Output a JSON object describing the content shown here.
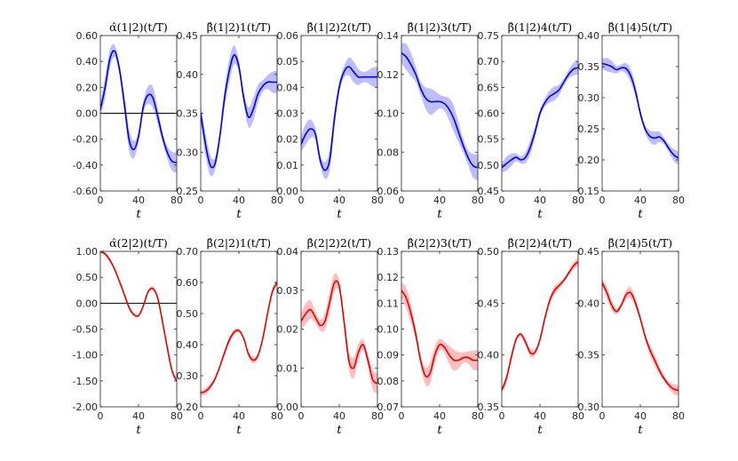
{
  "chart_data": [
    {
      "type": "line",
      "title": "α̂(1|2)(t/T)",
      "xlabel": "t",
      "ylabel": "",
      "xlim": [
        0,
        80
      ],
      "ylim": [
        -0.6,
        0.6
      ],
      "xticks": [
        0,
        40,
        80
      ],
      "xtick_labels": [
        "0",
        "40",
        "80"
      ],
      "yticks": [
        -0.6,
        -0.4,
        -0.2,
        0,
        0.2,
        0.4,
        0.6
      ],
      "ytick_labels": [
        "-0.60",
        "-0.40",
        "-0.20",
        "0.00",
        "0.20",
        "0.40",
        "0.60"
      ],
      "color": "#0000e6",
      "band_color": "#b3b3ff",
      "zero_line": true,
      "band_half_width": 0.06,
      "x": [
        0,
        5,
        10,
        15,
        20,
        25,
        30,
        35,
        40,
        45,
        50,
        55,
        60,
        65,
        70,
        75,
        80
      ],
      "values": [
        0.03,
        0.2,
        0.42,
        0.48,
        0.34,
        0.08,
        -0.2,
        -0.28,
        -0.18,
        0.05,
        0.14,
        0.12,
        -0.02,
        -0.18,
        -0.3,
        -0.37,
        -0.38
      ]
    },
    {
      "type": "line",
      "title": "β̂(1|2)1(t/T)",
      "xlabel": "t",
      "ylabel": "",
      "xlim": [
        0,
        80
      ],
      "ylim": [
        0.25,
        0.45
      ],
      "xticks": [
        0,
        40,
        80
      ],
      "xtick_labels": [
        "0",
        "40",
        "80"
      ],
      "yticks": [
        0.25,
        0.3,
        0.35,
        0.4,
        0.45
      ],
      "ytick_labels": [
        "0.25",
        "0.30",
        "0.35",
        "0.40",
        "0.45"
      ],
      "color": "#0000e6",
      "band_color": "#b3b3ff",
      "zero_line": false,
      "band_half_width": 0.011,
      "x": [
        0,
        5,
        10,
        15,
        20,
        25,
        30,
        35,
        40,
        45,
        50,
        55,
        60,
        65,
        70,
        75,
        80
      ],
      "values": [
        0.35,
        0.31,
        0.283,
        0.285,
        0.32,
        0.37,
        0.405,
        0.425,
        0.41,
        0.37,
        0.345,
        0.355,
        0.375,
        0.385,
        0.39,
        0.39,
        0.39
      ]
    },
    {
      "type": "line",
      "title": "β̂(1|2)2(t/T)",
      "xlabel": "t",
      "ylabel": "",
      "xlim": [
        0,
        80
      ],
      "ylim": [
        0,
        0.06
      ],
      "xticks": [
        0,
        40,
        80
      ],
      "xtick_labels": [
        "0",
        "40",
        "80"
      ],
      "yticks": [
        0,
        0.01,
        0.02,
        0.03,
        0.04,
        0.05,
        0.06
      ],
      "ytick_labels": [
        "0.00",
        "0.01",
        "0.02",
        "0.03",
        "0.04",
        "0.05",
        "0.06"
      ],
      "color": "#0000e6",
      "band_color": "#b3b3ff",
      "zero_line": false,
      "band_half_width": 0.003,
      "x": [
        0,
        5,
        10,
        15,
        20,
        25,
        30,
        35,
        40,
        45,
        50,
        55,
        60,
        65,
        70,
        75,
        80
      ],
      "values": [
        0.018,
        0.022,
        0.024,
        0.022,
        0.012,
        0.008,
        0.012,
        0.028,
        0.04,
        0.046,
        0.048,
        0.046,
        0.044,
        0.044,
        0.044,
        0.044,
        0.044
      ]
    },
    {
      "type": "line",
      "title": "β̂(1|2)3(t/T)",
      "xlabel": "t",
      "ylabel": "",
      "xlim": [
        0,
        80
      ],
      "ylim": [
        0.06,
        0.14
      ],
      "xticks": [
        0,
        40,
        80
      ],
      "xtick_labels": [
        "0",
        "40",
        "80"
      ],
      "yticks": [
        0.06,
        0.08,
        0.1,
        0.12,
        0.14
      ],
      "ytick_labels": [
        "0.06",
        "0.08",
        "0.10",
        "0.12",
        "0.14"
      ],
      "color": "#0000e6",
      "band_color": "#b3b3ff",
      "zero_line": false,
      "band_half_width": 0.005,
      "x": [
        0,
        5,
        10,
        15,
        20,
        25,
        30,
        35,
        40,
        45,
        50,
        55,
        60,
        65,
        70,
        75,
        80
      ],
      "values": [
        0.131,
        0.129,
        0.125,
        0.12,
        0.113,
        0.108,
        0.106,
        0.106,
        0.106,
        0.105,
        0.102,
        0.097,
        0.09,
        0.083,
        0.077,
        0.073,
        0.072
      ]
    },
    {
      "type": "line",
      "title": "β̂(1|2)4(t/T)",
      "xlabel": "t",
      "ylabel": "",
      "xlim": [
        0,
        80
      ],
      "ylim": [
        0.45,
        0.75
      ],
      "xticks": [
        0,
        40,
        80
      ],
      "xtick_labels": [
        "0",
        "40",
        "80"
      ],
      "yticks": [
        0.45,
        0.5,
        0.55,
        0.6,
        0.65,
        0.7,
        0.75
      ],
      "ytick_labels": [
        "0.45",
        "0.50",
        "0.55",
        "0.60",
        "0.65",
        "0.70",
        "0.75"
      ],
      "color": "#0000e6",
      "band_color": "#b3b3ff",
      "zero_line": false,
      "band_half_width": 0.01,
      "x": [
        0,
        5,
        10,
        15,
        20,
        25,
        30,
        35,
        40,
        45,
        50,
        55,
        60,
        65,
        70,
        75,
        80
      ],
      "values": [
        0.495,
        0.503,
        0.51,
        0.515,
        0.51,
        0.515,
        0.535,
        0.565,
        0.6,
        0.62,
        0.632,
        0.638,
        0.645,
        0.66,
        0.675,
        0.685,
        0.688
      ]
    },
    {
      "type": "line",
      "title": "β̂(1|4)5(t/T)",
      "xlabel": "t",
      "ylabel": "",
      "xlim": [
        0,
        80
      ],
      "ylim": [
        0.15,
        0.4
      ],
      "xticks": [
        0,
        40,
        80
      ],
      "xtick_labels": [
        "0",
        "40",
        "80"
      ],
      "yticks": [
        0.15,
        0.2,
        0.25,
        0.3,
        0.35,
        0.4
      ],
      "ytick_labels": [
        "0.15",
        "0.20",
        "0.25",
        "0.30",
        "0.35",
        "0.40"
      ],
      "color": "#0000e6",
      "band_color": "#b3b3ff",
      "zero_line": false,
      "band_half_width": 0.008,
      "x": [
        0,
        5,
        10,
        15,
        20,
        25,
        30,
        35,
        40,
        45,
        50,
        55,
        60,
        65,
        70,
        75,
        80
      ],
      "values": [
        0.355,
        0.353,
        0.35,
        0.345,
        0.348,
        0.347,
        0.335,
        0.31,
        0.275,
        0.25,
        0.238,
        0.235,
        0.237,
        0.23,
        0.218,
        0.208,
        0.203
      ]
    },
    {
      "type": "line",
      "title": "α̂(2|2)(t/T)",
      "xlabel": "t",
      "ylabel": "",
      "xlim": [
        0,
        80
      ],
      "ylim": [
        -2,
        1
      ],
      "xticks": [
        0,
        40,
        80
      ],
      "xtick_labels": [
        "0",
        "40",
        "80"
      ],
      "yticks": [
        -2,
        -1.5,
        -1,
        -0.5,
        0,
        0.5,
        1
      ],
      "ytick_labels": [
        "-2.00",
        "-1.50",
        "-1.00",
        "-0.50",
        "0.00",
        "0.50",
        "1.00"
      ],
      "color": "#e60000",
      "band_color": "#ffb3b3",
      "zero_line": true,
      "band_half_width": 0.03,
      "x": [
        0,
        5,
        10,
        15,
        20,
        25,
        30,
        35,
        40,
        45,
        50,
        55,
        60,
        65,
        70,
        75,
        80
      ],
      "values": [
        1,
        0.95,
        0.83,
        0.65,
        0.42,
        0.17,
        -0.08,
        -0.22,
        -0.24,
        -0.05,
        0.22,
        0.28,
        0.1,
        -0.35,
        -0.85,
        -1.3,
        -1.5
      ]
    },
    {
      "type": "line",
      "title": "β̂(2|2)1(t/T)",
      "xlabel": "t",
      "ylabel": "",
      "xlim": [
        0,
        80
      ],
      "ylim": [
        0.2,
        0.7
      ],
      "xticks": [
        0,
        40,
        80
      ],
      "xtick_labels": [
        "0",
        "40",
        "80"
      ],
      "yticks": [
        0.2,
        0.3,
        0.4,
        0.5,
        0.6,
        0.7
      ],
      "ytick_labels": [
        "0.20",
        "0.30",
        "0.40",
        "0.50",
        "0.60",
        "0.70"
      ],
      "color": "#e60000",
      "band_color": "#ffb3b3",
      "zero_line": false,
      "band_half_width": 0.008,
      "x": [
        0,
        5,
        10,
        15,
        20,
        25,
        30,
        35,
        40,
        45,
        50,
        55,
        60,
        65,
        70,
        75,
        80
      ],
      "values": [
        0.245,
        0.25,
        0.265,
        0.29,
        0.33,
        0.375,
        0.415,
        0.44,
        0.445,
        0.42,
        0.37,
        0.35,
        0.365,
        0.42,
        0.5,
        0.57,
        0.6
      ]
    },
    {
      "type": "line",
      "title": "β̂(2|2)2(t/T)",
      "xlabel": "t",
      "ylabel": "",
      "xlim": [
        0,
        80
      ],
      "ylim": [
        0,
        0.04
      ],
      "xticks": [
        0,
        40,
        80
      ],
      "xtick_labels": [
        "0",
        "40",
        "80"
      ],
      "yticks": [
        0,
        0.01,
        0.02,
        0.03,
        0.04
      ],
      "ytick_labels": [
        "0.00",
        "0.01",
        "0.02",
        "0.03",
        "0.04"
      ],
      "color": "#e60000",
      "band_color": "#ffb3b3",
      "zero_line": false,
      "band_half_width": 0.002,
      "x": [
        0,
        5,
        10,
        15,
        20,
        25,
        30,
        35,
        40,
        45,
        50,
        55,
        60,
        65,
        70,
        75,
        80
      ],
      "values": [
        0.022,
        0.024,
        0.025,
        0.023,
        0.021,
        0.022,
        0.027,
        0.032,
        0.031,
        0.022,
        0.012,
        0.01,
        0.014,
        0.016,
        0.012,
        0.007,
        0.006
      ]
    },
    {
      "type": "line",
      "title": "β̂(2|2)3(t/T)",
      "xlabel": "t",
      "ylabel": "",
      "xlim": [
        0,
        80
      ],
      "ylim": [
        0.07,
        0.13
      ],
      "xticks": [
        0,
        40,
        80
      ],
      "xtick_labels": [
        "0",
        "40",
        "80"
      ],
      "yticks": [
        0.07,
        0.08,
        0.09,
        0.1,
        0.11,
        0.12,
        0.13
      ],
      "ytick_labels": [
        "0.07",
        "0.08",
        "0.09",
        "0.10",
        "0.11",
        "0.12",
        "0.13"
      ],
      "color": "#e60000",
      "band_color": "#ffb3b3",
      "zero_line": false,
      "band_half_width": 0.003,
      "x": [
        0,
        5,
        10,
        15,
        20,
        25,
        30,
        35,
        40,
        45,
        50,
        55,
        60,
        65,
        70,
        75,
        80
      ],
      "values": [
        0.115,
        0.112,
        0.106,
        0.098,
        0.088,
        0.082,
        0.083,
        0.09,
        0.094,
        0.093,
        0.09,
        0.088,
        0.088,
        0.089,
        0.089,
        0.088,
        0.088
      ]
    },
    {
      "type": "line",
      "title": "β̂(2|2)4(t/T)",
      "xlabel": "t",
      "ylabel": "",
      "xlim": [
        0,
        80
      ],
      "ylim": [
        0.35,
        0.5
      ],
      "xticks": [
        0,
        40,
        80
      ],
      "xtick_labels": [
        "0",
        "40",
        "80"
      ],
      "yticks": [
        0.35,
        0.4,
        0.45,
        0.5
      ],
      "ytick_labels": [
        "0.35",
        "0.40",
        "0.45",
        "0.50"
      ],
      "color": "#e60000",
      "band_color": "#ffb3b3",
      "zero_line": false,
      "band_half_width": 0.003,
      "x": [
        0,
        5,
        10,
        15,
        20,
        25,
        30,
        35,
        40,
        45,
        50,
        55,
        60,
        65,
        70,
        75,
        80
      ],
      "values": [
        0.366,
        0.378,
        0.398,
        0.415,
        0.42,
        0.412,
        0.402,
        0.403,
        0.415,
        0.435,
        0.452,
        0.462,
        0.467,
        0.472,
        0.479,
        0.486,
        0.49
      ]
    },
    {
      "type": "line",
      "title": "β̂(2|4)5(t/T)",
      "xlabel": "t",
      "ylabel": "",
      "xlim": [
        0,
        80
      ],
      "ylim": [
        0.3,
        0.45
      ],
      "xticks": [
        0,
        40,
        80
      ],
      "xtick_labels": [
        "0",
        "40",
        "80"
      ],
      "yticks": [
        0.3,
        0.35,
        0.4,
        0.45
      ],
      "ytick_labels": [
        "0.30",
        "0.35",
        "0.40",
        "0.45"
      ],
      "color": "#e60000",
      "band_color": "#ffb3b3",
      "zero_line": false,
      "band_half_width": 0.004,
      "x": [
        0,
        5,
        10,
        15,
        20,
        25,
        30,
        35,
        40,
        45,
        50,
        55,
        60,
        65,
        70,
        75,
        80
      ],
      "values": [
        0.42,
        0.41,
        0.398,
        0.392,
        0.398,
        0.408,
        0.41,
        0.4,
        0.385,
        0.368,
        0.355,
        0.345,
        0.335,
        0.327,
        0.321,
        0.317,
        0.316
      ]
    }
  ]
}
